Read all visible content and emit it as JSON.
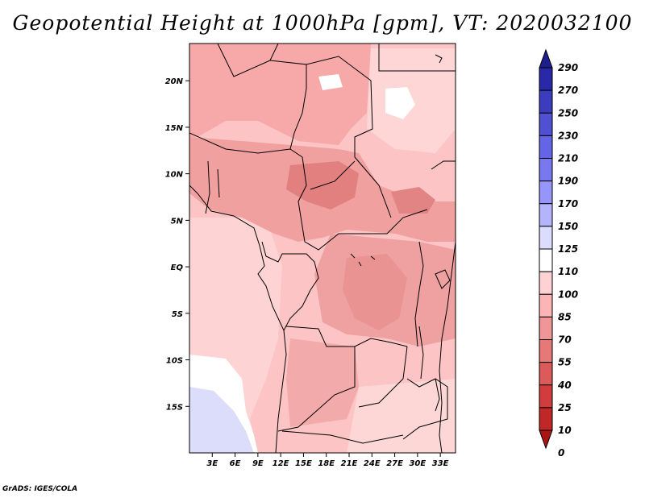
{
  "title": "Geopotential Height at 1000hPa [gpm], VT: 2020032100",
  "credit": "GrADS: IGES/COLA",
  "map": {
    "lat_labels": [
      "20N",
      "15N",
      "10N",
      "5N",
      "EQ",
      "5S",
      "10S",
      "15S"
    ],
    "lon_labels": [
      "3E",
      "6E",
      "9E",
      "12E",
      "15E",
      "18E",
      "21E",
      "24E",
      "27E",
      "30E",
      "33E"
    ],
    "lat_range": [
      -20,
      24
    ],
    "lon_range": [
      0,
      35
    ]
  },
  "colorbar": {
    "levels": [
      "290",
      "270",
      "250",
      "230",
      "210",
      "190",
      "170",
      "150",
      "125",
      "110",
      "100",
      "85",
      "70",
      "55",
      "40",
      "25",
      "10",
      "0"
    ],
    "colors": [
      "#1e1e8c",
      "#2828a8",
      "#3c3cbe",
      "#5050d2",
      "#6464e6",
      "#7878f0",
      "#9696fa",
      "#b4b4fc",
      "#dcdcfe",
      "#ffffff",
      "#fed2d2",
      "#fcb4b4",
      "#f09696",
      "#e67878",
      "#dc5a5a",
      "#d23c3c",
      "#c02828",
      "#aa1414"
    ]
  }
}
